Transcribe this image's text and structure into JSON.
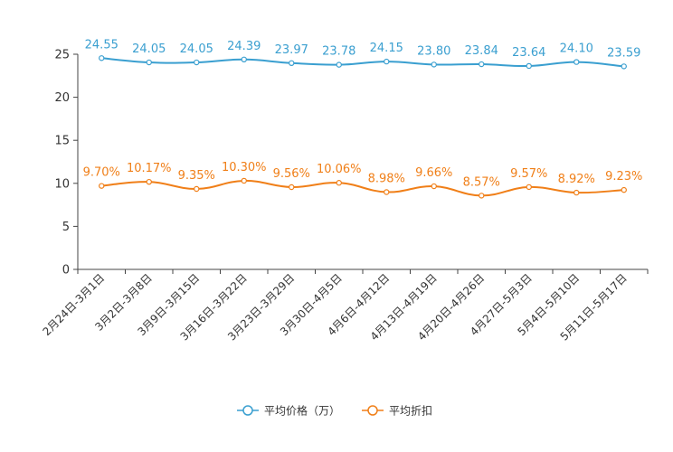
{
  "chart_data": {
    "type": "line",
    "title": "",
    "xlabel": "",
    "ylabel": "",
    "ylim": [
      0,
      25
    ],
    "yticks": [
      0,
      5,
      10,
      15,
      20,
      25
    ],
    "grid": false,
    "legend_position": "bottom-center",
    "categories": [
      "2月24日-3月1日",
      "3月2日-3月8日",
      "3月9日-3月15日",
      "3月16日-3月22日",
      "3月23日-3月29日",
      "3月30日-4月5日",
      "4月6日-4月12日",
      "4月13日-4月19日",
      "4月20日-4月26日",
      "4月27日-5月3日",
      "5月4日-5月10日",
      "5月11日-5月17日"
    ],
    "series": [
      {
        "name": "平均价格（万）",
        "color": "#3a9fd0",
        "values": [
          24.55,
          24.05,
          24.05,
          24.39,
          23.97,
          23.78,
          24.15,
          23.8,
          23.84,
          23.64,
          24.1,
          23.59
        ],
        "labels": [
          "24.55",
          "24.05",
          "24.05",
          "24.39",
          "23.97",
          "23.78",
          "24.15",
          "23.80",
          "23.84",
          "23.64",
          "24.10",
          "23.59"
        ]
      },
      {
        "name": "平均折扣",
        "color": "#f07f18",
        "values": [
          9.7,
          10.17,
          9.35,
          10.3,
          9.56,
          10.06,
          8.98,
          9.66,
          8.57,
          9.57,
          8.92,
          9.23
        ],
        "labels": [
          "9.70%",
          "10.17%",
          "9.35%",
          "10.30%",
          "9.56%",
          "10.06%",
          "8.98%",
          "9.66%",
          "8.57%",
          "9.57%",
          "8.92%",
          "9.23%"
        ]
      }
    ]
  }
}
